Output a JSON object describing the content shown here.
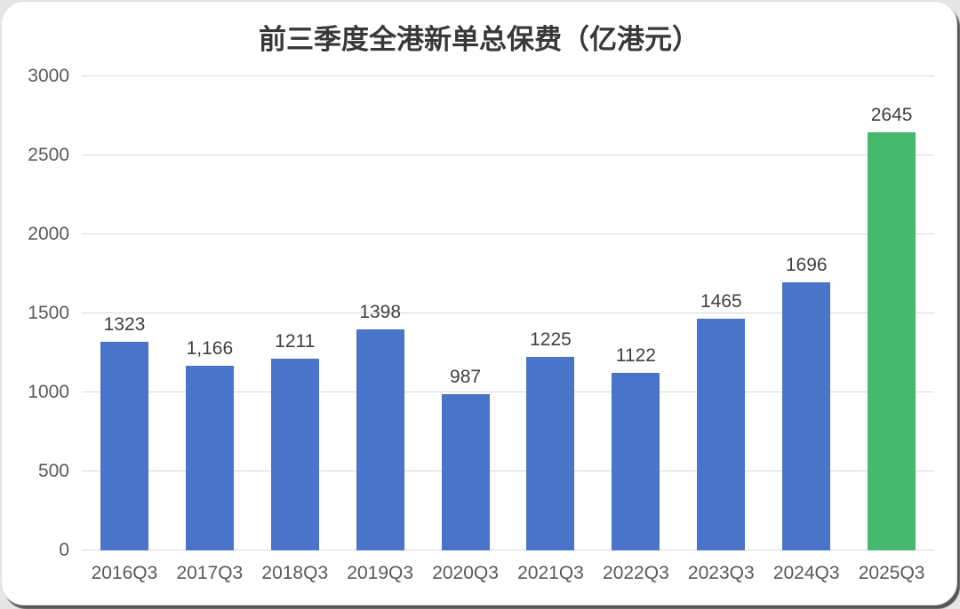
{
  "chart_data": {
    "type": "bar",
    "title": "前三季度全港新单总保费（亿港元）",
    "categories": [
      "2016Q3",
      "2017Q3",
      "2018Q3",
      "2019Q3",
      "2020Q3",
      "2021Q3",
      "2022Q3",
      "2023Q3",
      "2024Q3",
      "2025Q3"
    ],
    "values": [
      1323,
      1166,
      1211,
      1398,
      987,
      1225,
      1122,
      1465,
      1696,
      2645
    ],
    "value_labels": [
      "1323",
      "1,166",
      "1211",
      "1398",
      "987",
      "1225",
      "1122",
      "1465",
      "1696",
      "2645"
    ],
    "xlabel": "",
    "ylabel": "",
    "ylim": [
      0,
      3000
    ],
    "yticks": [
      0,
      500,
      1000,
      1500,
      2000,
      2500,
      3000
    ],
    "grid": true,
    "legend": "none",
    "colors": {
      "bar": "#4a74c9",
      "highlight": "#46b96e",
      "gridline": "#d9d9d9",
      "tick_text": "#595959",
      "value_text": "#3f3f3f",
      "title_text": "#383838"
    },
    "highlight_index": 9
  }
}
